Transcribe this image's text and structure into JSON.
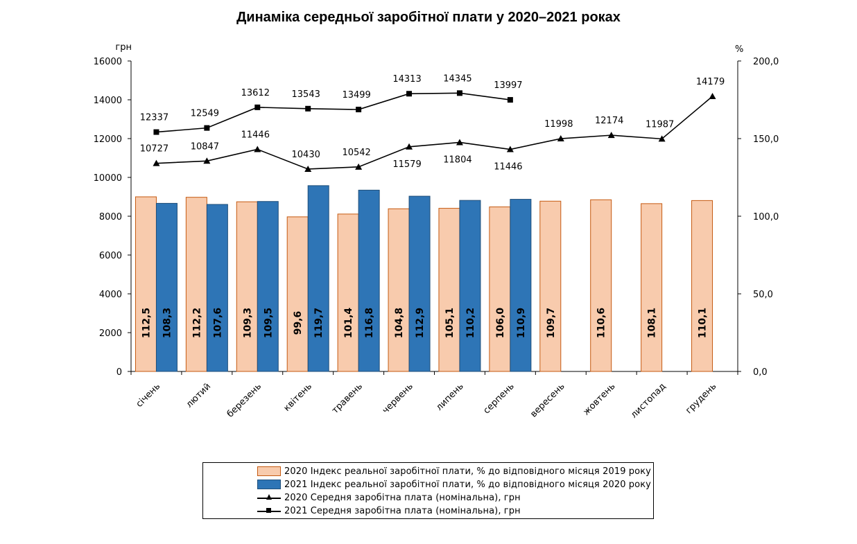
{
  "title": "Динаміка середньої заробітної плати у 2020–2021 роках",
  "chart_data": {
    "type": "bar",
    "title": "Динаміка середньої заробітної плати у 2020–2021 роках",
    "categories": [
      "січень",
      "лютий",
      "березень",
      "квітень",
      "травень",
      "червень",
      "липень",
      "серпень",
      "вересень",
      "жовтень",
      "листопад",
      "грудень"
    ],
    "left_axis": {
      "unit": "грн",
      "min": 0,
      "max": 16000,
      "ticks": [
        "0",
        "2000",
        "4000",
        "6000",
        "8000",
        "10000",
        "12000",
        "14000",
        "16000"
      ]
    },
    "right_axis": {
      "unit": "%",
      "min": 0,
      "max": 200,
      "ticks": [
        "0,0",
        "50,0",
        "100,0",
        "150,0",
        "200,0"
      ]
    },
    "bar_series": [
      {
        "name": "2020 Індекс реальної заробітної плати, % до відповідного місяця 2019 року",
        "color": "#f8cbad",
        "border": "#c55a11",
        "axis": "right",
        "values": [
          112.5,
          112.2,
          109.3,
          99.6,
          101.4,
          104.8,
          105.1,
          106.0,
          109.7,
          110.6,
          108.1,
          110.1
        ],
        "labels": [
          "112,5",
          "112,2",
          "109,3",
          "99,6",
          "101,4",
          "104,8",
          "105,1",
          "106,0",
          "109,7",
          "110,6",
          "108,1",
          "110,1"
        ]
      },
      {
        "name": "2021 Індекс реальної заробітної плати, % до відповідного місяця 2020 року",
        "color": "#2e75b6",
        "border": "#1f4e79",
        "axis": "right",
        "values": [
          108.3,
          107.6,
          109.5,
          119.7,
          116.8,
          112.9,
          110.2,
          110.9,
          null,
          null,
          null,
          null
        ],
        "labels": [
          "108,3",
          "107,6",
          "109,5",
          "119,7",
          "116,8",
          "112,9",
          "110,2",
          "110,9",
          "",
          "",
          "",
          ""
        ]
      }
    ],
    "line_series": [
      {
        "name": "2020 Середня заробітна плата (номінальна), грн",
        "marker": "triangle",
        "axis": "left",
        "values": [
          10727,
          10847,
          11446,
          10430,
          10542,
          11579,
          11804,
          11446,
          11998,
          12174,
          11987,
          14179
        ],
        "labels": [
          "10727",
          "10847",
          "11446",
          "10430",
          "10542",
          "11579",
          "11804",
          "11446",
          "11998",
          "12174",
          "11987",
          "14179"
        ]
      },
      {
        "name": "2021 Середня заробітна плата (номінальна), грн",
        "marker": "square",
        "axis": "left",
        "values": [
          12337,
          12549,
          13612,
          13543,
          13499,
          14313,
          14345,
          13997,
          null,
          null,
          null,
          null
        ],
        "labels": [
          "12337",
          "12549",
          "13612",
          "13543",
          "13499",
          "14313",
          "14345",
          "13997",
          "",
          "",
          "",
          ""
        ]
      }
    ],
    "legend_position": "bottom",
    "grid": false
  },
  "legend": {
    "bar2020": "2020 Індекс реальної заробітної плати, % до відповідного місяця 2019 року",
    "bar2021": "2021 Індекс реальної заробітної плати, % до відповідного місяця 2020 року",
    "line2020": "2020 Середня заробітна плата (номінальна), грн",
    "line2021": "2021 Середня заробітна плата (номінальна), грн"
  }
}
